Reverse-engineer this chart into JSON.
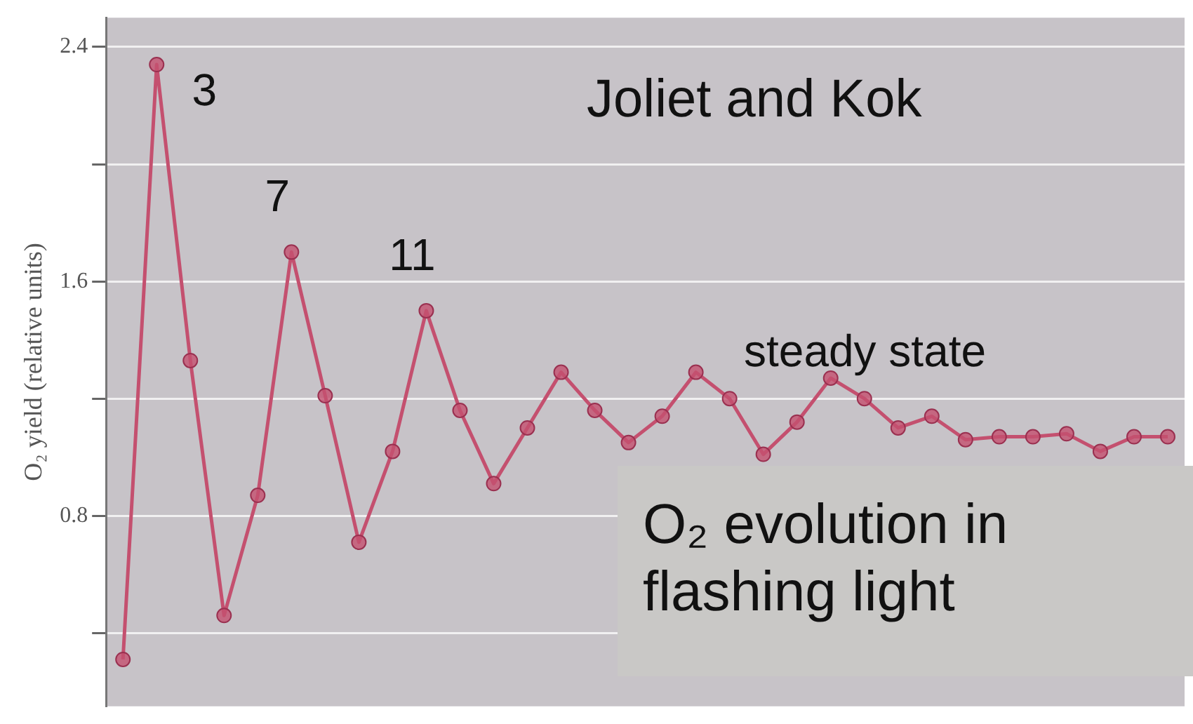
{
  "chart_data": {
    "type": "line",
    "ylabel": "O₂ yield (relative units)",
    "categories": [
      null,
      null,
      null,
      null,
      null,
      null,
      null,
      null,
      null,
      null,
      null,
      null,
      null,
      null,
      null,
      null,
      null,
      null,
      null,
      null,
      null,
      null,
      null,
      null,
      null,
      null,
      null,
      null,
      null,
      null,
      null,
      null
    ],
    "series": [
      {
        "color": "#c4506f",
        "values": [
          0.31,
          2.34,
          1.33,
          0.46,
          0.87,
          1.7,
          1.21,
          0.71,
          1.02,
          1.5,
          1.16,
          0.91,
          1.1,
          1.29,
          1.16,
          1.05,
          1.14,
          1.29,
          1.2,
          1.01,
          1.12,
          1.27,
          1.2,
          1.1,
          1.14,
          1.06,
          1.07,
          1.07,
          1.08,
          1.02,
          1.07,
          1.07
        ]
      }
    ],
    "ylim": [
      0.15,
      2.5
    ],
    "yticks": [
      {
        "value": 0.4,
        "label": null
      },
      0.8,
      {
        "value": 1.2,
        "label": null
      },
      1.6,
      {
        "value": 2.0,
        "label": null
      },
      2.4
    ],
    "grid": "y",
    "legend": false,
    "marker": "circle",
    "line_style": "solid",
    "annotations": [
      "Joliet and Kok",
      "steady state",
      "O₂ evolution in flashing light",
      "3",
      "7",
      "11"
    ]
  }
}
